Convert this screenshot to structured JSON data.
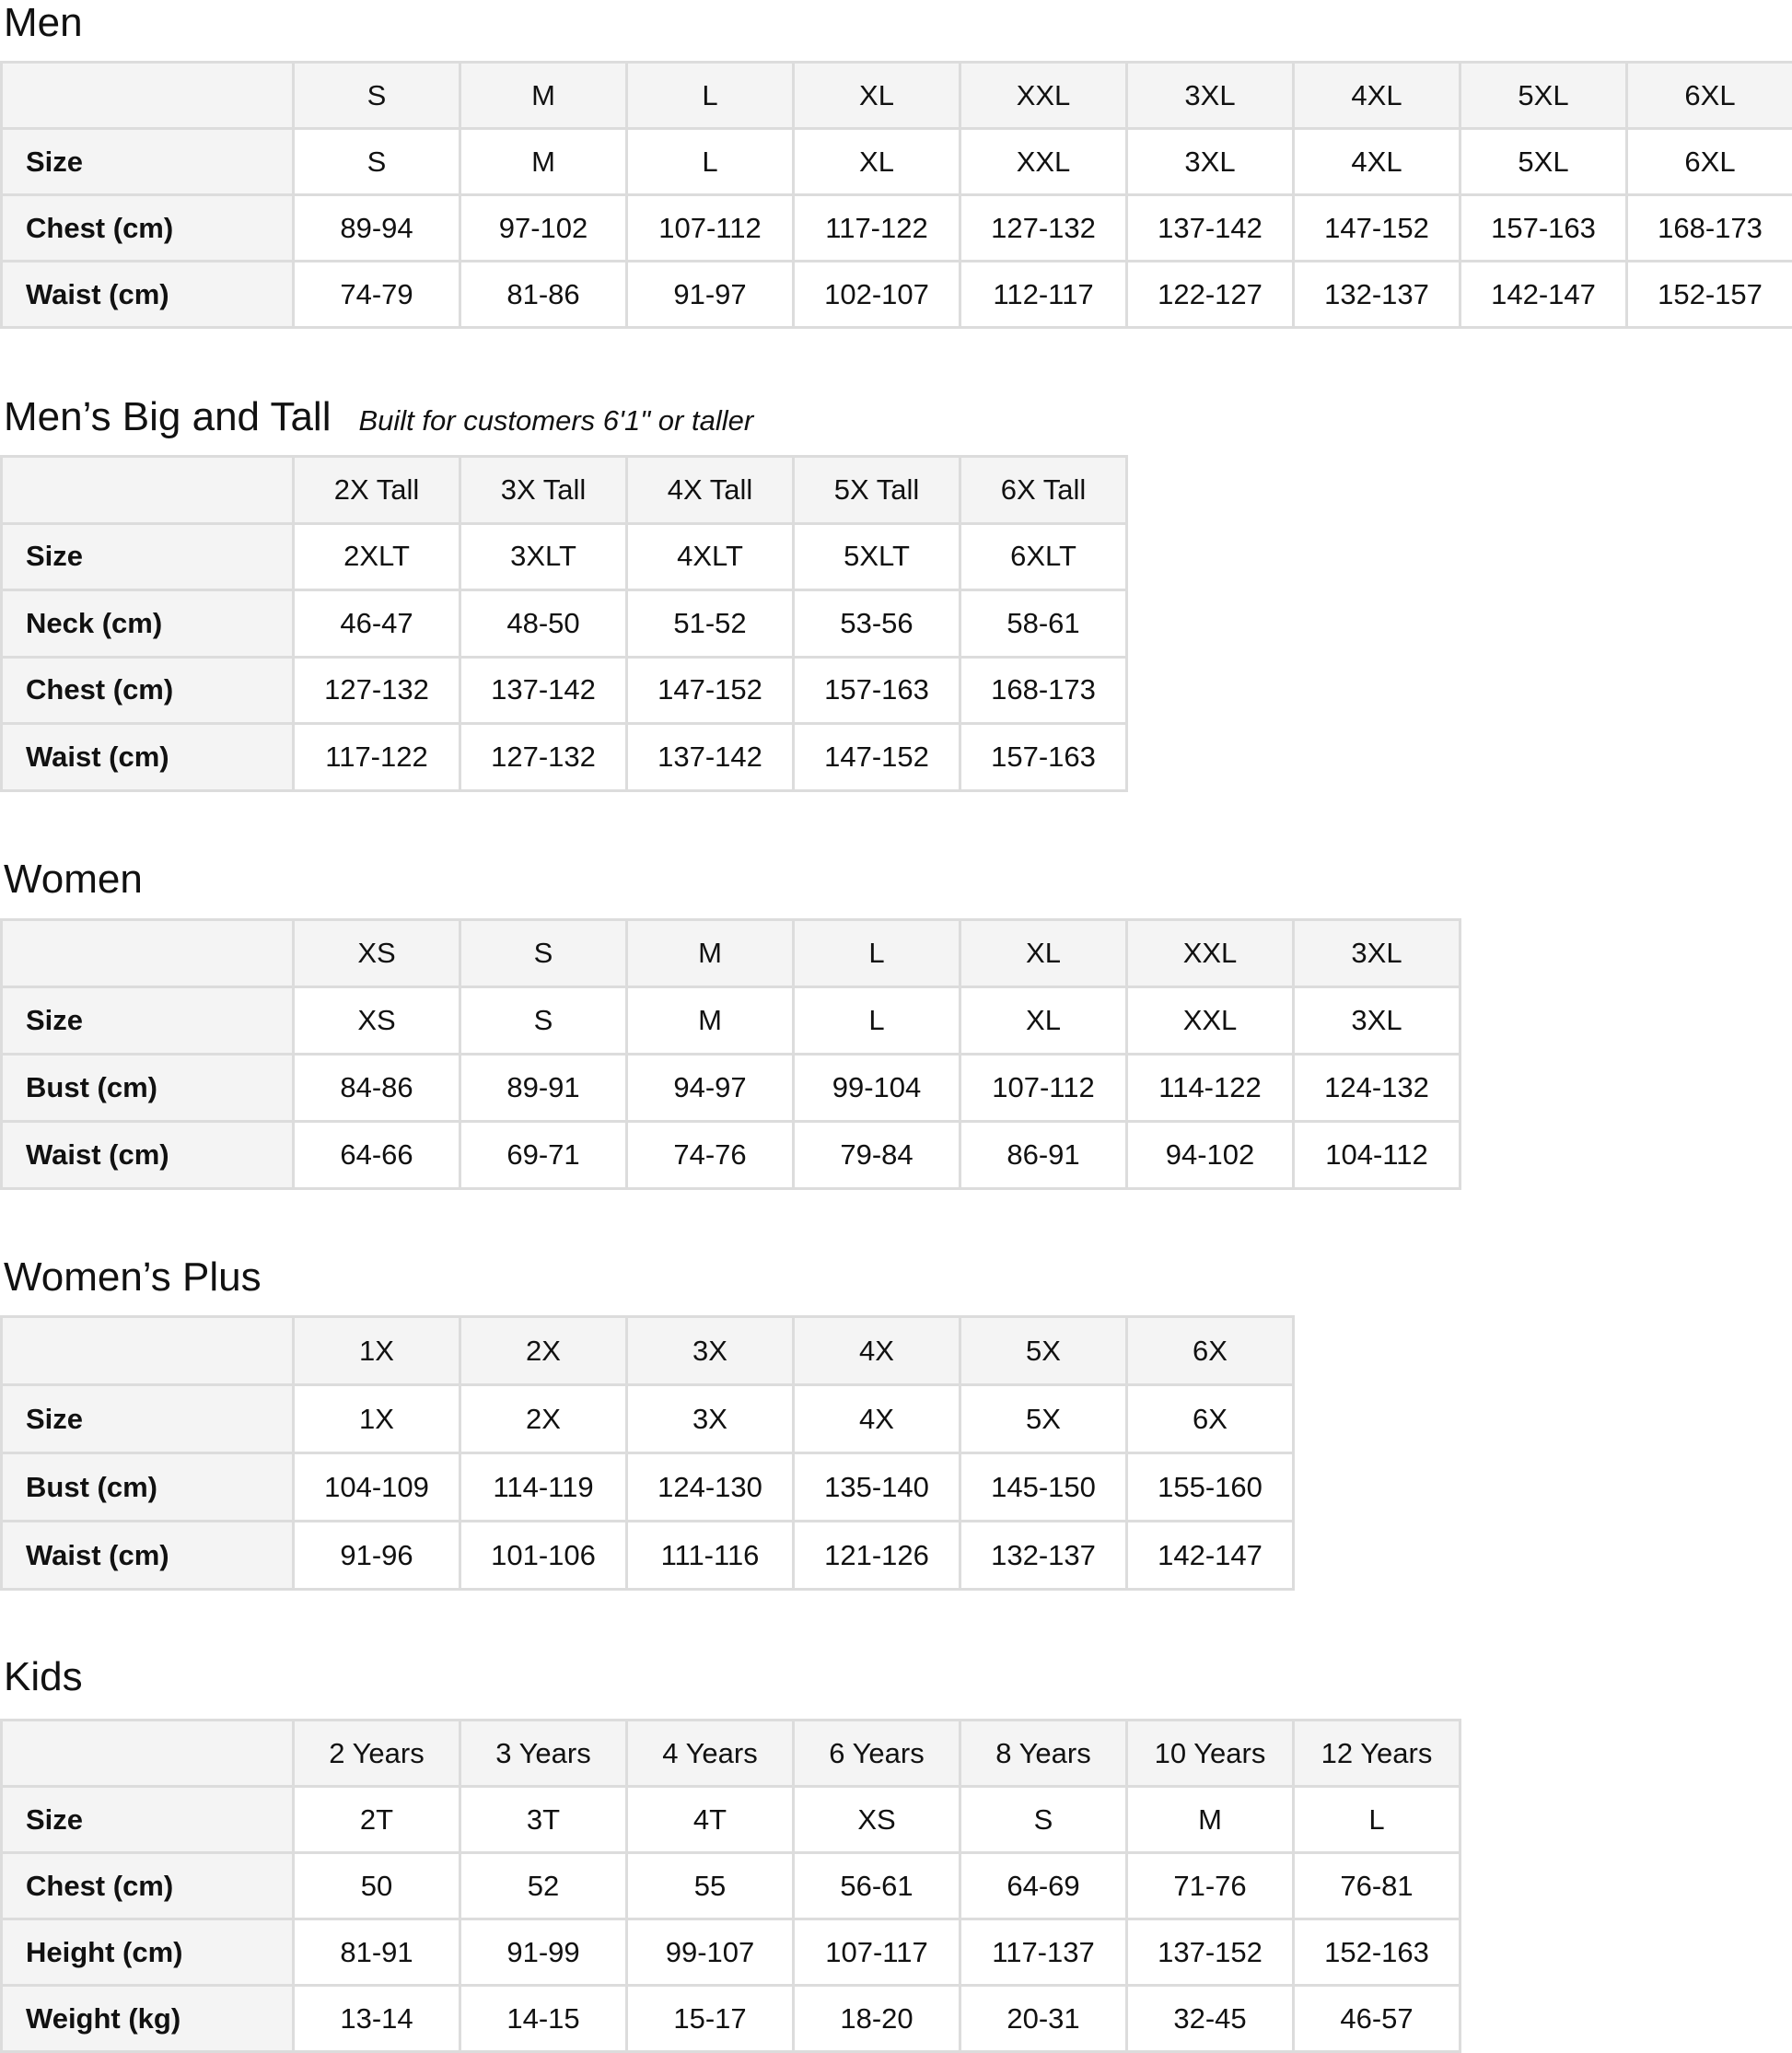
{
  "sections": [
    {
      "id": "men",
      "title": "Men",
      "subtitle": "",
      "columns": [
        "S",
        "M",
        "L",
        "XL",
        "XXL",
        "3XL",
        "4XL",
        "5XL",
        "6XL"
      ],
      "rows": [
        {
          "label": "Size",
          "values": [
            "S",
            "M",
            "L",
            "XL",
            "XXL",
            "3XL",
            "4XL",
            "5XL",
            "6XL"
          ]
        },
        {
          "label": "Chest (cm)",
          "values": [
            "89-94",
            "97-102",
            "107-112",
            "117-122",
            "127-132",
            "137-142",
            "147-152",
            "157-163",
            "168-173"
          ]
        },
        {
          "label": "Waist (cm)",
          "values": [
            "74-79",
            "81-86",
            "91-97",
            "102-107",
            "112-117",
            "122-127",
            "132-137",
            "142-147",
            "152-157"
          ]
        }
      ]
    },
    {
      "id": "mens-big-and-tall",
      "title": "Men’s Big and Tall",
      "subtitle": "Built for customers 6'1\" or taller",
      "columns": [
        "2X Tall",
        "3X Tall",
        "4X Tall",
        "5X Tall",
        "6X Tall"
      ],
      "rows": [
        {
          "label": "Size",
          "values": [
            "2XLT",
            "3XLT",
            "4XLT",
            "5XLT",
            "6XLT"
          ]
        },
        {
          "label": "Neck (cm)",
          "values": [
            "46-47",
            "48-50",
            "51-52",
            "53-56",
            "58-61"
          ]
        },
        {
          "label": "Chest (cm)",
          "values": [
            "127-132",
            "137-142",
            "147-152",
            "157-163",
            "168-173"
          ]
        },
        {
          "label": "Waist (cm)",
          "values": [
            "117-122",
            "127-132",
            "137-142",
            "147-152",
            "157-163"
          ]
        }
      ]
    },
    {
      "id": "women",
      "title": "Women",
      "subtitle": "",
      "columns": [
        "XS",
        "S",
        "M",
        "L",
        "XL",
        "XXL",
        "3XL"
      ],
      "rows": [
        {
          "label": "Size",
          "values": [
            "XS",
            "S",
            "M",
            "L",
            "XL",
            "XXL",
            "3XL"
          ]
        },
        {
          "label": "Bust (cm)",
          "values": [
            "84-86",
            "89-91",
            "94-97",
            "99-104",
            "107-112",
            "114-122",
            "124-132"
          ]
        },
        {
          "label": "Waist (cm)",
          "values": [
            "64-66",
            "69-71",
            "74-76",
            "79-84",
            "86-91",
            "94-102",
            "104-112"
          ]
        }
      ]
    },
    {
      "id": "womens-plus",
      "title": "Women’s Plus",
      "subtitle": "",
      "columns": [
        "1X",
        "2X",
        "3X",
        "4X",
        "5X",
        "6X"
      ],
      "rows": [
        {
          "label": "Size",
          "values": [
            "1X",
            "2X",
            "3X",
            "4X",
            "5X",
            "6X"
          ]
        },
        {
          "label": "Bust (cm)",
          "values": [
            "104-109",
            "114-119",
            "124-130",
            "135-140",
            "145-150",
            "155-160"
          ]
        },
        {
          "label": "Waist (cm)",
          "values": [
            "91-96",
            "101-106",
            "111-116",
            "121-126",
            "132-137",
            "142-147"
          ]
        }
      ]
    },
    {
      "id": "kids",
      "title": "Kids",
      "subtitle": "",
      "columns": [
        "2 Years",
        "3 Years",
        "4 Years",
        "6 Years",
        "8 Years",
        "10 Years",
        "12 Years"
      ],
      "rows": [
        {
          "label": "Size",
          "values": [
            "2T",
            "3T",
            "4T",
            "XS",
            "S",
            "M",
            "L"
          ]
        },
        {
          "label": "Chest (cm)",
          "values": [
            "50",
            "52",
            "55",
            "56-61",
            "64-69",
            "71-76",
            "76-81"
          ]
        },
        {
          "label": "Height (cm)",
          "values": [
            "81-91",
            "91-99",
            "99-107",
            "107-117",
            "117-137",
            "137-152",
            "152-163"
          ]
        },
        {
          "label": "Weight (kg)",
          "values": [
            "13-14",
            "14-15",
            "15-17",
            "18-20",
            "20-31",
            "32-45",
            "46-57"
          ]
        }
      ]
    }
  ],
  "colors": {
    "header_bg": "#f4f4f4",
    "border": "#dcdcdc",
    "text": "#111111"
  }
}
